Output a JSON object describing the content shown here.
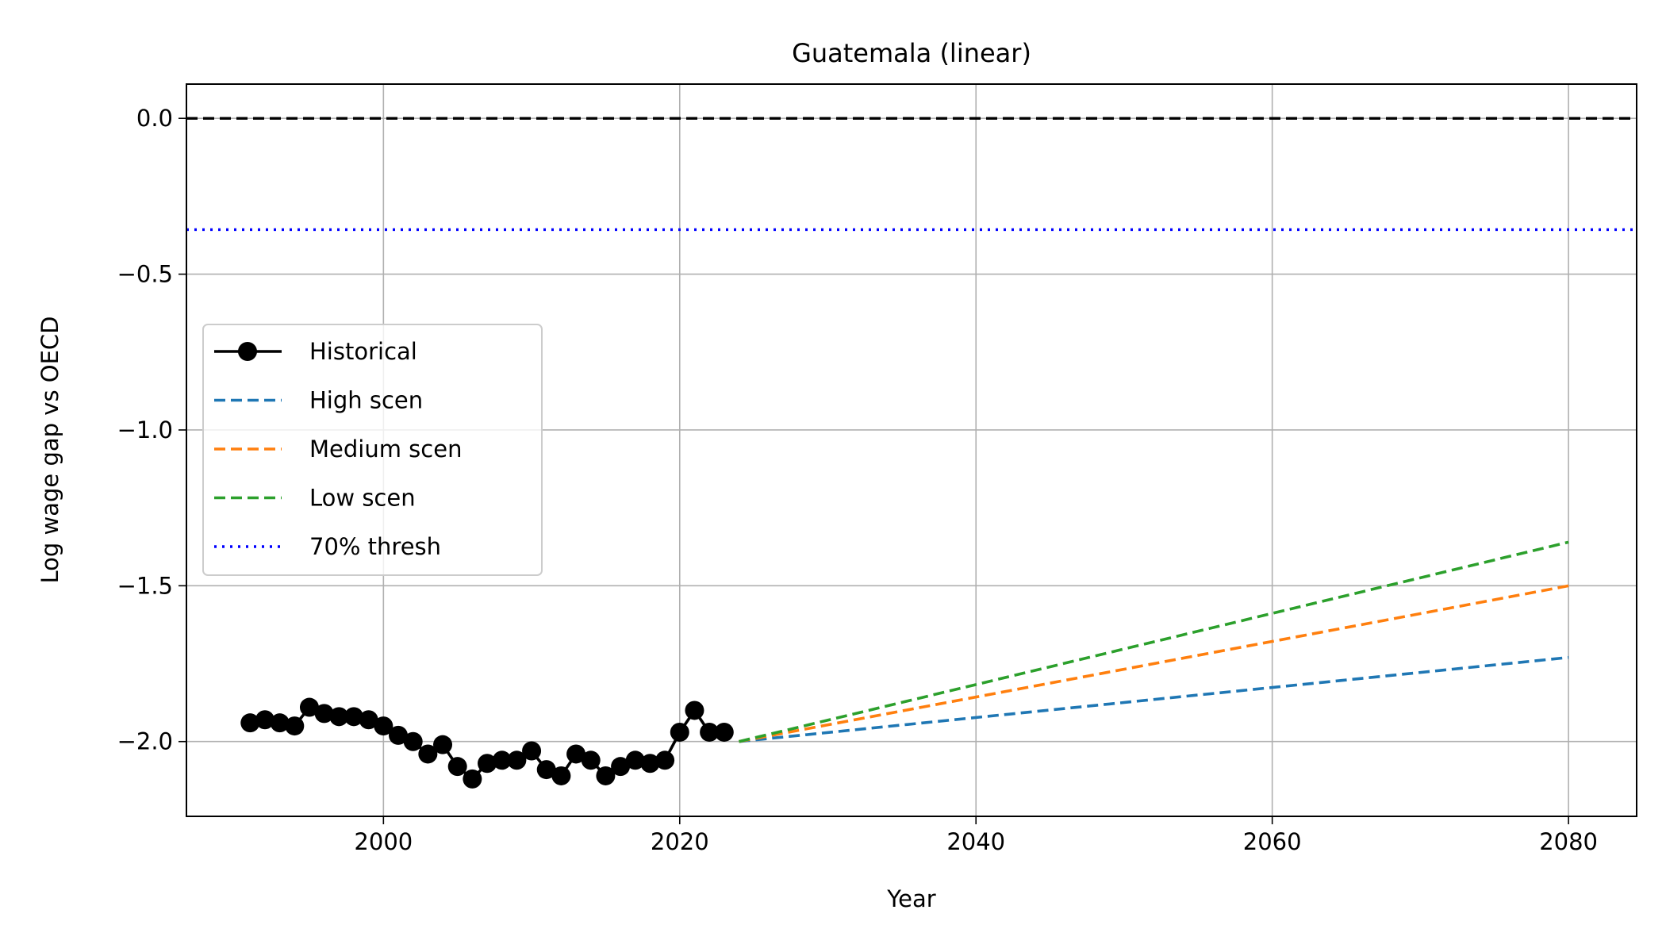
{
  "chart_data": {
    "type": "line",
    "title": "Guatemala (linear)",
    "xlabel": "Year",
    "ylabel": "Log wage gap vs OECD",
    "xlim": [
      1986.7,
      2084.6
    ],
    "ylim": [
      -2.24,
      0.11
    ],
    "grid": true,
    "legend_position": "center-left",
    "x_ticks": [
      {
        "value": 2000,
        "label": "2000"
      },
      {
        "value": 2020,
        "label": "2020"
      },
      {
        "value": 2040,
        "label": "2040"
      },
      {
        "value": 2060,
        "label": "2060"
      },
      {
        "value": 2080,
        "label": "2080"
      }
    ],
    "y_ticks": [
      {
        "value": 0.0,
        "label": "0.0"
      },
      {
        "value": -0.5,
        "label": "−0.5"
      },
      {
        "value": -1.0,
        "label": "−1.0"
      },
      {
        "value": -1.5,
        "label": "−1.5"
      },
      {
        "value": -2.0,
        "label": "−2.0"
      }
    ],
    "reference_lines": [
      {
        "y": 0.0,
        "color": "#000000",
        "style": "dashed"
      },
      {
        "y": -0.357,
        "color": "#0000ff",
        "style": "dotted",
        "legend": "70% thresh"
      }
    ],
    "series": [
      {
        "name": "Historical",
        "color": "#000000",
        "style": "solid-marker",
        "x": [
          1991,
          1992,
          1993,
          1994,
          1995,
          1996,
          1997,
          1998,
          1999,
          2000,
          2001,
          2002,
          2003,
          2004,
          2005,
          2006,
          2007,
          2008,
          2009,
          2010,
          2011,
          2012,
          2013,
          2014,
          2015,
          2016,
          2017,
          2018,
          2019,
          2020,
          2021,
          2022,
          2023
        ],
        "y": [
          -1.94,
          -1.93,
          -1.94,
          -1.95,
          -1.89,
          -1.91,
          -1.92,
          -1.92,
          -1.93,
          -1.95,
          -1.98,
          -2.0,
          -2.04,
          -2.01,
          -2.08,
          -2.12,
          -2.07,
          -2.06,
          -2.06,
          -2.03,
          -2.09,
          -2.11,
          -2.04,
          -2.06,
          -2.11,
          -2.08,
          -2.06,
          -2.07,
          -2.06,
          -1.97,
          -1.9,
          -1.97,
          -1.97
        ]
      },
      {
        "name": "High scen",
        "color": "#1f77b4",
        "style": "dashed",
        "x": [
          2024,
          2080
        ],
        "y": [
          -2.0,
          -1.73
        ]
      },
      {
        "name": "Medium scen",
        "color": "#ff7f0e",
        "style": "dashed",
        "x": [
          2024,
          2080
        ],
        "y": [
          -2.0,
          -1.5
        ]
      },
      {
        "name": "Low scen",
        "color": "#2ca02c",
        "style": "dashed",
        "x": [
          2024,
          2080
        ],
        "y": [
          -2.0,
          -1.36
        ]
      }
    ]
  }
}
